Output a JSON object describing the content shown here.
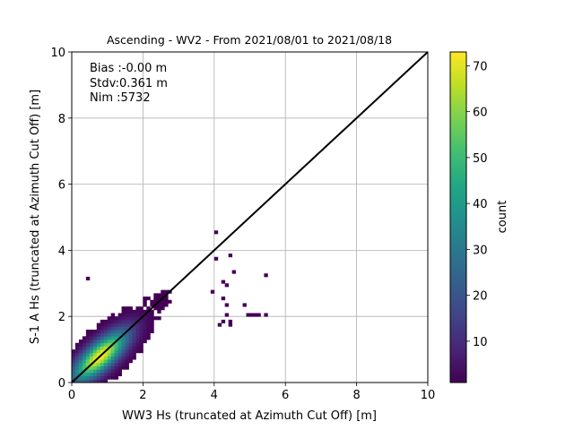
{
  "chart_data": {
    "type": "heatmap",
    "title": "Ascending - WV2 - From 2021/08/01 to 2021/08/18",
    "xlabel": "WW3 Hs (truncated at Azimuth Cut Off) [m]",
    "ylabel": "S-1 A Hs (truncated at Azimuth Cut Off) [m]",
    "xlim": [
      0,
      10
    ],
    "ylim": [
      0,
      10
    ],
    "xticks": [
      "0",
      "2",
      "4",
      "6",
      "8",
      "10"
    ],
    "yticks": [
      "0",
      "2",
      "4",
      "6",
      "8",
      "10"
    ],
    "grid": true,
    "colormap": "viridis",
    "colorbar": {
      "label": "count",
      "range": [
        1,
        73
      ],
      "ticks": [
        "10",
        "20",
        "30",
        "40",
        "50",
        "60",
        "70"
      ]
    },
    "annotation_lines": [
      "Bias :-0.00 m",
      "Stdv:0.361 m",
      "Nim :5732"
    ],
    "reference_line": {
      "x": [
        0,
        10
      ],
      "y": [
        0,
        10
      ]
    },
    "bin_width": 0.1,
    "dense_region": {
      "x_range": [
        0,
        3.6
      ],
      "y_range": [
        0,
        3.2
      ],
      "peak": {
        "x": 0.8,
        "y": 0.8,
        "count": 73
      },
      "along_diagonal_spread_m": 0.7,
      "across_diagonal_spread_m": 0.26
    },
    "outliers": [
      {
        "x": 0.45,
        "y": 3.15
      },
      {
        "x": 4.1,
        "y": 4.5
      },
      {
        "x": 4.6,
        "y": 3.35
      },
      {
        "x": 5.45,
        "y": 3.25
      },
      {
        "x": 4.35,
        "y": 2.95
      },
      {
        "x": 4.3,
        "y": 2.55
      },
      {
        "x": 4.35,
        "y": 2.35
      },
      {
        "x": 4.35,
        "y": 2.05
      },
      {
        "x": 4.25,
        "y": 1.85
      },
      {
        "x": 4.15,
        "y": 1.75
      },
      {
        "x": 4.45,
        "y": 1.85
      },
      {
        "x": 4.45,
        "y": 1.75
      },
      {
        "x": 4.85,
        "y": 2.35
      },
      {
        "x": 4.95,
        "y": 2.05
      },
      {
        "x": 5.05,
        "y": 2.05
      },
      {
        "x": 5.15,
        "y": 2.05
      },
      {
        "x": 5.25,
        "y": 2.05
      },
      {
        "x": 5.45,
        "y": 2.05
      },
      {
        "x": 4.45,
        "y": 3.85
      },
      {
        "x": 4.0,
        "y": 3.8
      },
      {
        "x": 4.2,
        "y": 3.0
      },
      {
        "x": 3.9,
        "y": 2.8
      }
    ]
  }
}
